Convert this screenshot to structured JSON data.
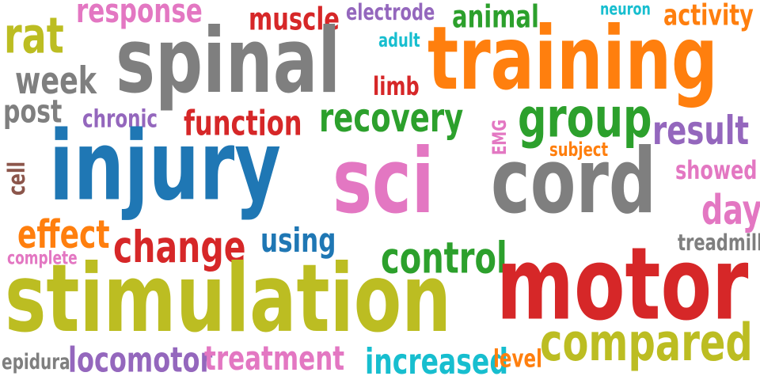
{
  "colors": {
    "blue": "#1f77b4",
    "orange": "#ff7f0e",
    "green": "#2ca02c",
    "red": "#d62728",
    "purple": "#9467bd",
    "brown": "#8c564b",
    "pink": "#e377c2",
    "gray": "#7f7f7f",
    "olive": "#bcbd22",
    "cyan": "#17becf"
  },
  "words": {
    "response": "response",
    "muscle": "muscle",
    "electrode": "electrode",
    "animal": "animal",
    "neuron": "neuron",
    "activity": "activity",
    "rat": "rat",
    "spinal": "spinal",
    "training": "training",
    "adult": "adult",
    "week": "week",
    "limb": "limb",
    "post": "post",
    "chronic": "chronic",
    "function": "function",
    "recovery": "recovery",
    "group": "group",
    "result": "result",
    "emg": "EMG",
    "subject": "subject",
    "cell": "cell",
    "injury": "injury",
    "sci": "sci",
    "cord": "cord",
    "showed": "showed",
    "day": "day",
    "effect": "effect",
    "change": "change",
    "using": "using",
    "complete": "complete",
    "control": "control",
    "treadmill": "treadmill",
    "motor": "motor",
    "stimulation": "stimulation",
    "compared": "compared",
    "epidural": "epidural",
    "locomotor": "locomotor",
    "treatment": "treatment",
    "increased": "increased",
    "level": "level"
  }
}
